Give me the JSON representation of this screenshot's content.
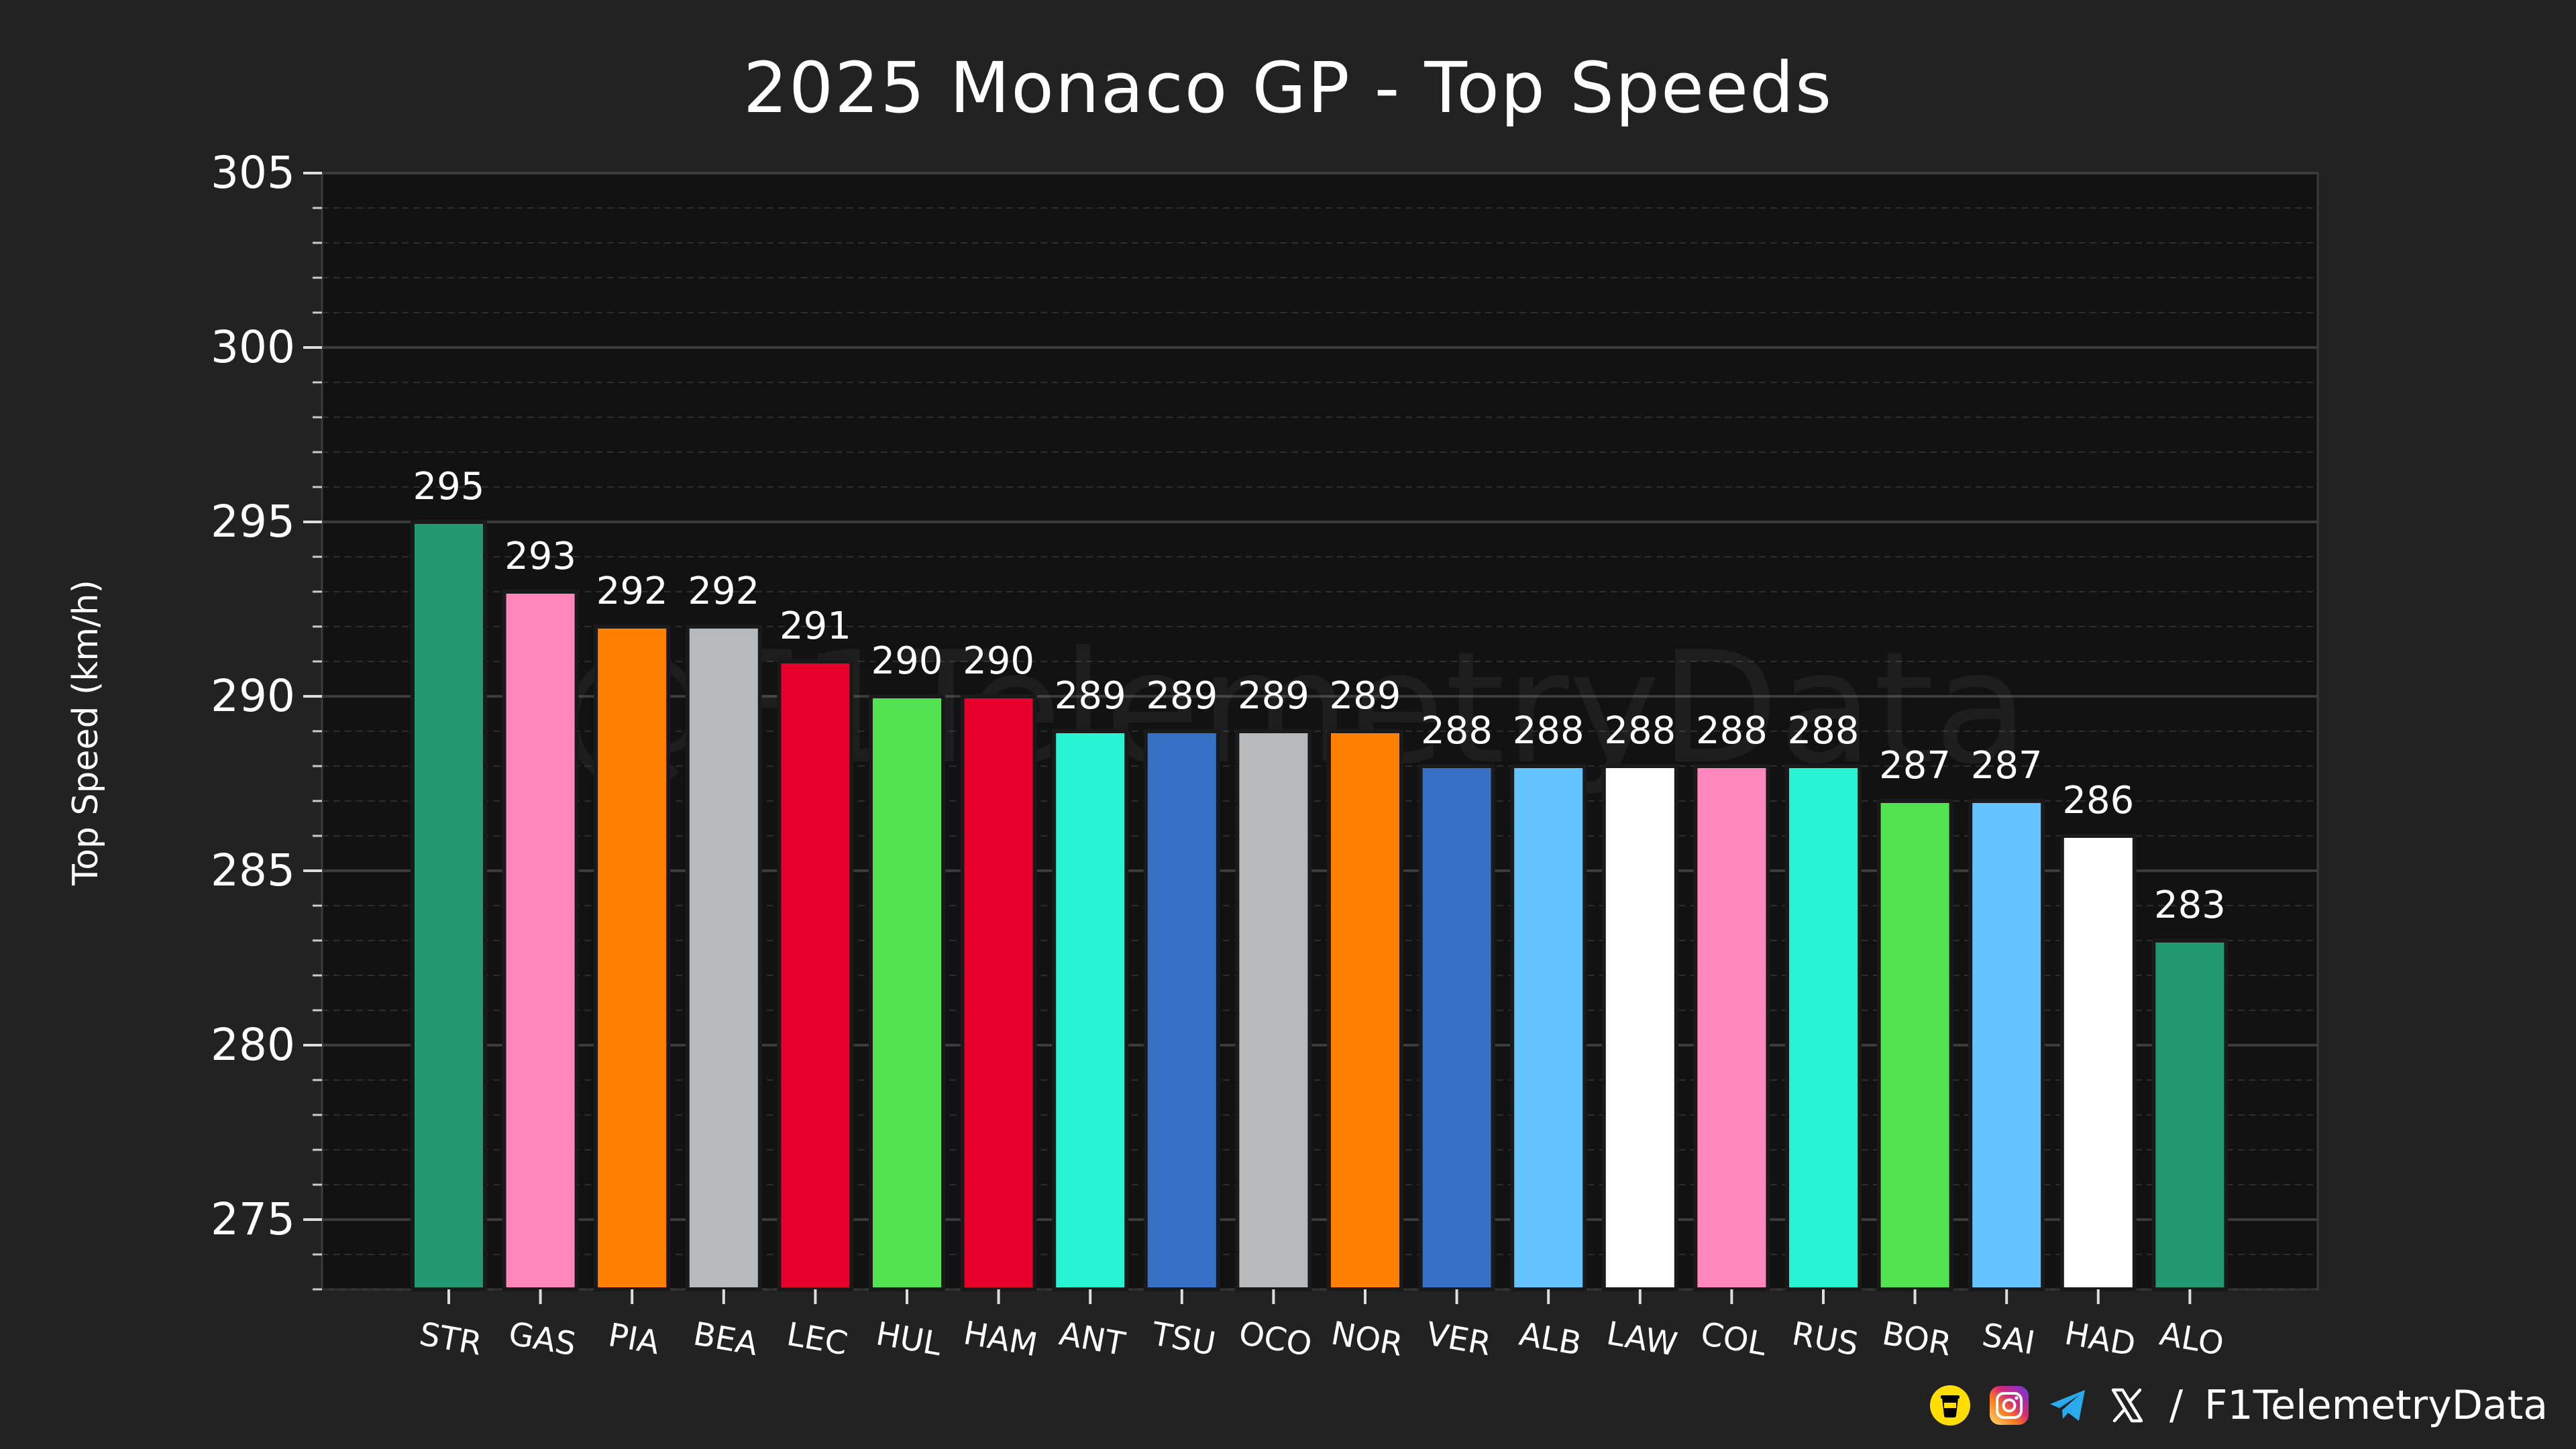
{
  "chart_data": {
    "type": "bar",
    "title": "2025 Monaco GP - Top Speeds",
    "xlabel": "",
    "ylabel": "Top Speed (km/h)",
    "ylim": [
      273,
      305
    ],
    "yticks": [
      275,
      280,
      285,
      290,
      295,
      300,
      305
    ],
    "grid": true,
    "categories": [
      "STR",
      "GAS",
      "PIA",
      "BEA",
      "LEC",
      "HUL",
      "HAM",
      "ANT",
      "TSU",
      "OCO",
      "NOR",
      "VER",
      "ALB",
      "LAW",
      "COL",
      "RUS",
      "BOR",
      "SAI",
      "HAD",
      "ALO"
    ],
    "values": [
      295,
      293,
      292,
      292,
      291,
      290,
      290,
      289,
      289,
      289,
      289,
      288,
      288,
      288,
      288,
      288,
      287,
      287,
      286,
      283
    ],
    "colors": [
      "#229971",
      "#FF87BC",
      "#FF8000",
      "#B6BABD",
      "#E8002D",
      "#52E252",
      "#E8002D",
      "#27F4D2",
      "#3671C6",
      "#B6BABD",
      "#FF8000",
      "#3671C6",
      "#64C4FF",
      "#FFFFFF",
      "#FF87BC",
      "#27F4D2",
      "#52E252",
      "#64C4FF",
      "#FFFFFF",
      "#229971"
    ],
    "watermark": "@F1TelemetryData"
  },
  "footer": {
    "separator": "/",
    "handle": "F1TelemetryData",
    "icons": [
      "buymeacoffee-icon",
      "instagram-icon",
      "telegram-icon",
      "x-icon"
    ]
  }
}
